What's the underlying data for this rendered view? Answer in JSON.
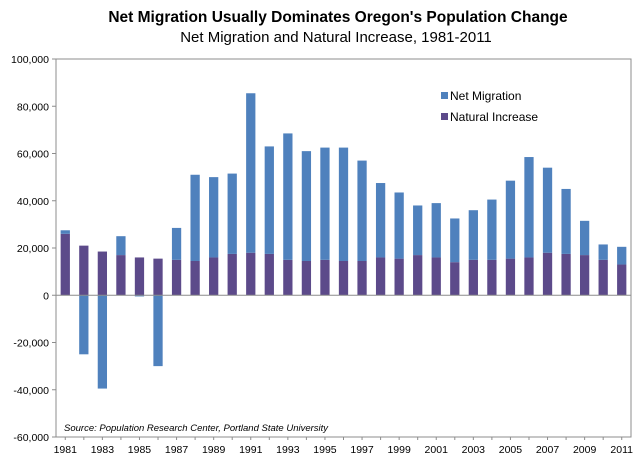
{
  "chart_data": {
    "type": "bar",
    "stacked": true,
    "title": "Net Migration Usually Dominates Oregon's Population Change",
    "subtitle": "Net Migration and Natural Increase, 1981-2011",
    "xlabel": "",
    "ylabel": "",
    "ylim": [
      -60000,
      100000
    ],
    "yticks": [
      100000,
      80000,
      60000,
      40000,
      20000,
      0,
      -20000,
      -40000,
      -60000
    ],
    "ytick_labels": [
      "100,000",
      "80,000",
      "60,000",
      "40,000",
      "20,000",
      "0",
      "-20,000",
      "-40,000",
      "-60,000"
    ],
    "grid": false,
    "legend_position": "top-right",
    "categories": [
      "1981",
      "1982",
      "1983",
      "1984",
      "1985",
      "1986",
      "1987",
      "1988",
      "1989",
      "1990",
      "1991",
      "1992",
      "1993",
      "1994",
      "1995",
      "1996",
      "1997",
      "1998",
      "1999",
      "2000",
      "2001",
      "2002",
      "2003",
      "2004",
      "2005",
      "2006",
      "2007",
      "2008",
      "2009",
      "2010",
      "2011"
    ],
    "xtick_labels": [
      "1981",
      "1983",
      "1985",
      "1987",
      "1989",
      "1991",
      "1993",
      "1995",
      "1997",
      "1999",
      "2001",
      "2003",
      "2005",
      "2007",
      "2009",
      "2011"
    ],
    "series": [
      {
        "name": "Natural Increase",
        "color": "#5c4a8a",
        "values": [
          26000,
          21000,
          18500,
          17000,
          16000,
          15500,
          15000,
          14500,
          16000,
          17500,
          18000,
          17500,
          15000,
          14500,
          15000,
          14500,
          14500,
          16000,
          15500,
          17000,
          16000,
          14000,
          15000,
          15000,
          15500,
          16000,
          18000,
          17500,
          17000,
          15000,
          13000
        ]
      },
      {
        "name": "Net Migration",
        "color": "#4f81bd",
        "values": [
          1500,
          -25000,
          -39500,
          8000,
          -500,
          -30000,
          13500,
          36500,
          34000,
          34000,
          67500,
          45500,
          53500,
          46500,
          47500,
          48000,
          42500,
          31500,
          28000,
          21000,
          23000,
          18500,
          21000,
          25500,
          33000,
          42500,
          36000,
          27500,
          14500,
          6500,
          7500
        ]
      }
    ],
    "annotations": [
      "Source: Population Research Center, Portland State University"
    ]
  }
}
